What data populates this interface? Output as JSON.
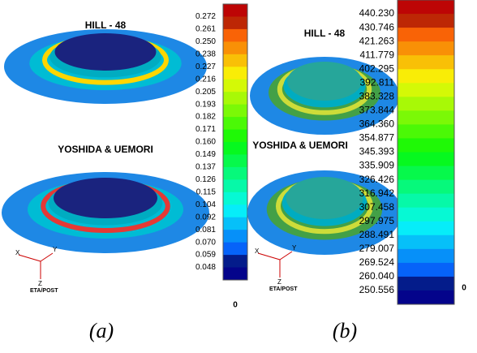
{
  "panels": [
    {
      "caption": "(a)",
      "models": [
        "HILL - 48",
        "YOSHIDA & UEMORI"
      ],
      "scale": {
        "labels": [
          "0.272",
          "0.261",
          "0.250",
          "0.238",
          "0.227",
          "0.216",
          "0.205",
          "0.193",
          "0.182",
          "0.171",
          "0.160",
          "0.149",
          "0.137",
          "0.126",
          "0.115",
          "0.104",
          "0.092",
          "0.081",
          "0.070",
          "0.059",
          "0.048"
        ],
        "zero": "0"
      },
      "triad": {
        "x": "X",
        "y": "Y",
        "z": "Z",
        "source": "ETA/POST"
      }
    },
    {
      "caption": "(b)",
      "models": [
        "HILL - 48",
        "YOSHIDA & UEMORI"
      ],
      "scale": {
        "labels": [
          "440.230",
          "430.746",
          "421.263",
          "411.779",
          "402.295",
          "392.811",
          "383.328",
          "373.844",
          "364.360",
          "354.877",
          "345.393",
          "335.909",
          "326.426",
          "316.942",
          "307.458",
          "297.975",
          "288.491",
          "279.007",
          "269.524",
          "260.040",
          "250.556"
        ],
        "zero": "0"
      },
      "triad": {
        "x": "X",
        "y": "Y",
        "z": "Z",
        "source": "ETA/POST"
      }
    }
  ]
}
